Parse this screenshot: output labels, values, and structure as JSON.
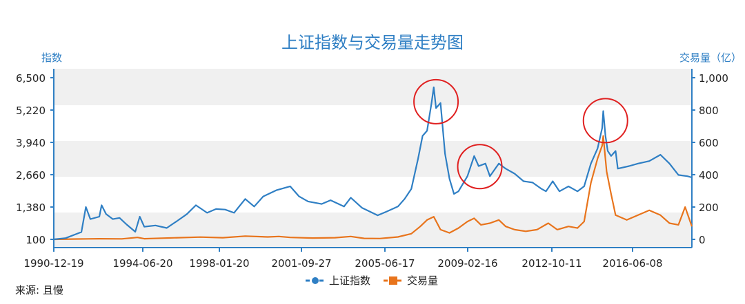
{
  "chart_data": {
    "type": "line",
    "title": "上证指数与交易量走势图",
    "ylabel_left": "指数",
    "ylabel_right": "交易量（亿）",
    "y_left_ticks": [
      "6,500",
      "5,220",
      "3,940",
      "2,660",
      "1,380",
      "100"
    ],
    "y_left_tick_values": [
      6500,
      5220,
      3940,
      2660,
      1380,
      100
    ],
    "y_left_range": [
      0,
      6500
    ],
    "y_right_ticks": [
      "1,000",
      "800",
      "600",
      "400",
      "200",
      "0"
    ],
    "y_right_tick_values": [
      1000,
      800,
      600,
      400,
      200,
      0
    ],
    "y_right_range": [
      -40,
      1000
    ],
    "x_ticks": [
      "1990-12-19",
      "1994-06-20",
      "1998-01-20",
      "2001-09-27",
      "2005-06-17",
      "2009-02-16",
      "2012-10-11",
      "2016-06-08"
    ],
    "x_range": [
      1990.97,
      2019.4
    ],
    "grid": "horizontal bands",
    "legend": "bottom-center",
    "source": "来源: 且慢",
    "series": [
      {
        "name": "上证指数",
        "axis": "left",
        "color": "#2f7fc4",
        "points": [
          [
            1990.97,
            100
          ],
          [
            1991.5,
            150
          ],
          [
            1992.2,
            390
          ],
          [
            1992.4,
            1380
          ],
          [
            1992.6,
            900
          ],
          [
            1993.0,
            1000
          ],
          [
            1993.1,
            1450
          ],
          [
            1993.3,
            1100
          ],
          [
            1993.6,
            900
          ],
          [
            1993.9,
            950
          ],
          [
            1994.2,
            700
          ],
          [
            1994.6,
            400
          ],
          [
            1994.8,
            1000
          ],
          [
            1995.0,
            600
          ],
          [
            1995.5,
            650
          ],
          [
            1996.0,
            550
          ],
          [
            1996.5,
            850
          ],
          [
            1996.9,
            1100
          ],
          [
            1997.3,
            1450
          ],
          [
            1997.8,
            1150
          ],
          [
            1998.2,
            1300
          ],
          [
            1998.6,
            1280
          ],
          [
            1999.0,
            1150
          ],
          [
            1999.5,
            1700
          ],
          [
            1999.9,
            1400
          ],
          [
            2000.3,
            1800
          ],
          [
            2000.9,
            2050
          ],
          [
            2001.5,
            2200
          ],
          [
            2001.9,
            1800
          ],
          [
            2002.3,
            1600
          ],
          [
            2002.9,
            1500
          ],
          [
            2003.3,
            1650
          ],
          [
            2003.9,
            1400
          ],
          [
            2004.2,
            1750
          ],
          [
            2004.7,
            1350
          ],
          [
            2005.4,
            1050
          ],
          [
            2005.8,
            1200
          ],
          [
            2006.3,
            1400
          ],
          [
            2006.6,
            1700
          ],
          [
            2006.9,
            2100
          ],
          [
            2007.2,
            3300
          ],
          [
            2007.4,
            4200
          ],
          [
            2007.6,
            4400
          ],
          [
            2007.8,
            5500
          ],
          [
            2007.9,
            6124
          ],
          [
            2008.0,
            5300
          ],
          [
            2008.2,
            5500
          ],
          [
            2008.4,
            3500
          ],
          [
            2008.6,
            2500
          ],
          [
            2008.8,
            1900
          ],
          [
            2009.0,
            2000
          ],
          [
            2009.4,
            2600
          ],
          [
            2009.7,
            3400
          ],
          [
            2009.9,
            3000
          ],
          [
            2010.2,
            3100
          ],
          [
            2010.4,
            2600
          ],
          [
            2010.8,
            3100
          ],
          [
            2011.1,
            2900
          ],
          [
            2011.5,
            2700
          ],
          [
            2011.9,
            2400
          ],
          [
            2012.3,
            2350
          ],
          [
            2012.7,
            2100
          ],
          [
            2012.9,
            2000
          ],
          [
            2013.2,
            2400
          ],
          [
            2013.5,
            2000
          ],
          [
            2013.9,
            2200
          ],
          [
            2014.3,
            2000
          ],
          [
            2014.6,
            2200
          ],
          [
            2014.9,
            3100
          ],
          [
            2015.2,
            3700
          ],
          [
            2015.4,
            4500
          ],
          [
            2015.45,
            5178
          ],
          [
            2015.55,
            4200
          ],
          [
            2015.65,
            3600
          ],
          [
            2015.8,
            3400
          ],
          [
            2016.0,
            3600
          ],
          [
            2016.1,
            2900
          ],
          [
            2016.6,
            3000
          ],
          [
            2017.0,
            3100
          ],
          [
            2017.5,
            3200
          ],
          [
            2018.0,
            3450
          ],
          [
            2018.4,
            3100
          ],
          [
            2018.8,
            2650
          ],
          [
            2019.2,
            2600
          ],
          [
            2019.4,
            2550
          ]
        ]
      },
      {
        "name": "交易量",
        "axis": "right",
        "color": "#e8741c",
        "points": [
          [
            1990.97,
            0
          ],
          [
            1992.0,
            2
          ],
          [
            1993.0,
            4
          ],
          [
            1994.0,
            3
          ],
          [
            1994.7,
            12
          ],
          [
            1995.0,
            4
          ],
          [
            1996.5,
            10
          ],
          [
            1997.5,
            14
          ],
          [
            1998.5,
            10
          ],
          [
            1999.5,
            20
          ],
          [
            2000.5,
            15
          ],
          [
            2001.0,
            18
          ],
          [
            2001.5,
            12
          ],
          [
            2002.5,
            8
          ],
          [
            2003.5,
            10
          ],
          [
            2004.2,
            18
          ],
          [
            2004.8,
            6
          ],
          [
            2005.5,
            5
          ],
          [
            2006.3,
            15
          ],
          [
            2006.9,
            35
          ],
          [
            2007.3,
            80
          ],
          [
            2007.6,
            120
          ],
          [
            2007.9,
            140
          ],
          [
            2008.2,
            60
          ],
          [
            2008.6,
            40
          ],
          [
            2009.0,
            70
          ],
          [
            2009.4,
            110
          ],
          [
            2009.7,
            130
          ],
          [
            2010.0,
            90
          ],
          [
            2010.4,
            100
          ],
          [
            2010.8,
            120
          ],
          [
            2011.1,
            80
          ],
          [
            2011.5,
            60
          ],
          [
            2012.0,
            50
          ],
          [
            2012.5,
            60
          ],
          [
            2013.0,
            100
          ],
          [
            2013.4,
            60
          ],
          [
            2013.9,
            80
          ],
          [
            2014.3,
            70
          ],
          [
            2014.6,
            110
          ],
          [
            2014.9,
            350
          ],
          [
            2015.2,
            500
          ],
          [
            2015.4,
            580
          ],
          [
            2015.45,
            640
          ],
          [
            2015.6,
            420
          ],
          [
            2015.8,
            280
          ],
          [
            2016.0,
            150
          ],
          [
            2016.5,
            120
          ],
          [
            2017.0,
            150
          ],
          [
            2017.5,
            180
          ],
          [
            2018.0,
            150
          ],
          [
            2018.4,
            100
          ],
          [
            2018.8,
            90
          ],
          [
            2019.1,
            200
          ],
          [
            2019.3,
            120
          ],
          [
            2019.4,
            80
          ]
        ]
      }
    ],
    "annotations": [
      {
        "shape": "circle",
        "color": "#e02020",
        "x": 2008.0,
        "y": 5550
      },
      {
        "shape": "circle",
        "color": "#e02020",
        "x": 2009.95,
        "y": 2980
      },
      {
        "shape": "circle",
        "color": "#e02020",
        "x": 2015.55,
        "y": 4800
      }
    ]
  }
}
